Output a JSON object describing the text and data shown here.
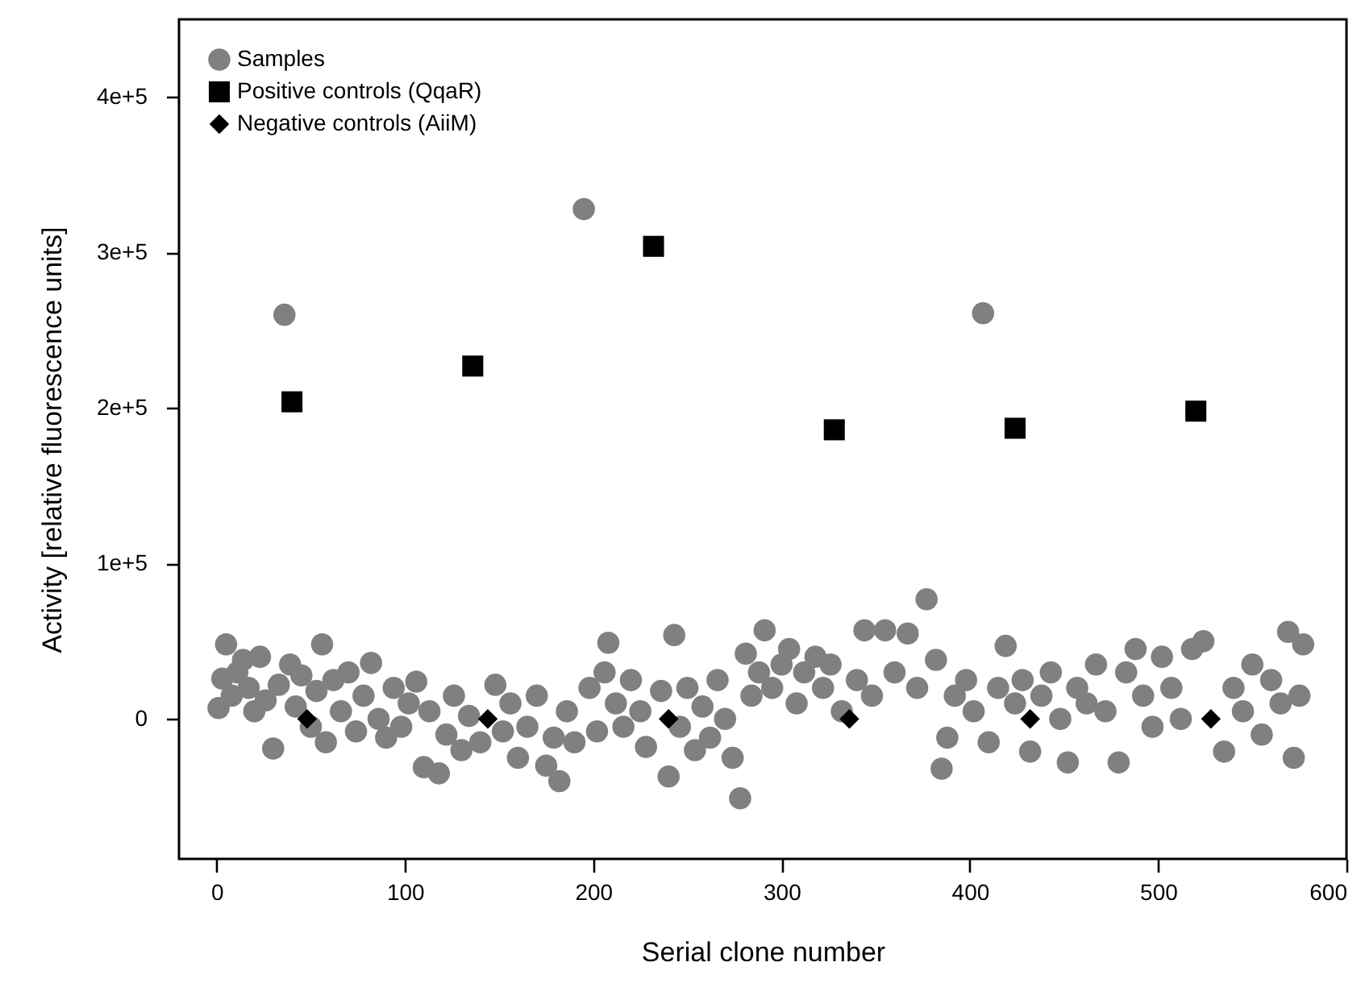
{
  "chart_data": {
    "type": "scatter",
    "xlabel": "Serial clone number",
    "ylabel": "Activity [relative fluorescence units]",
    "xlim": [
      -20,
      600
    ],
    "xticks": [
      0,
      100,
      200,
      300,
      400,
      500,
      600
    ],
    "ylim": [
      -90000,
      450000
    ],
    "yticks": [
      0,
      {
        "value": 100000,
        "label": "1e+5"
      },
      {
        "value": 200000,
        "label": "2e+5"
      },
      {
        "value": 300000,
        "label": "3e+5"
      },
      {
        "value": 400000,
        "label": "4e+5"
      }
    ],
    "grid": false,
    "legend": "top left",
    "series": [
      {
        "name": "Samples",
        "color": "#808080",
        "marker": "circle",
        "x": [
          1,
          3,
          5,
          8,
          11,
          14,
          17,
          20,
          23,
          26,
          30,
          33,
          36,
          39,
          42,
          45,
          50,
          53,
          56,
          58,
          62,
          66,
          70,
          74,
          78,
          82,
          86,
          90,
          94,
          98,
          102,
          106,
          110,
          113,
          118,
          122,
          126,
          130,
          134,
          140,
          148,
          152,
          156,
          160,
          165,
          170,
          175,
          179,
          182,
          186,
          190,
          195,
          198,
          202,
          206,
          208,
          212,
          216,
          220,
          225,
          228,
          236,
          240,
          243,
          246,
          250,
          254,
          258,
          262,
          266,
          270,
          274,
          278,
          281,
          284,
          288,
          291,
          295,
          300,
          304,
          308,
          312,
          318,
          322,
          326,
          332,
          340,
          344,
          348,
          355,
          360,
          367,
          372,
          377,
          382,
          385,
          388,
          392,
          398,
          402,
          407,
          410,
          415,
          419,
          424,
          428,
          432,
          438,
          443,
          448,
          452,
          457,
          462,
          467,
          472,
          479,
          483,
          488,
          492,
          497,
          502,
          507,
          512,
          518,
          524,
          535,
          540,
          545,
          550,
          555,
          560,
          565,
          569,
          572,
          575,
          577
        ],
        "values": [
          7000,
          26000,
          48000,
          15000,
          30000,
          38000,
          20000,
          5000,
          40000,
          12000,
          -19000,
          22000,
          260000,
          35000,
          8000,
          28000,
          -5000,
          18000,
          48000,
          -15000,
          25000,
          5000,
          30000,
          -8000,
          15000,
          36000,
          0,
          -12000,
          20000,
          -5000,
          10000,
          24000,
          -31000,
          5000,
          -35000,
          -10000,
          15000,
          -20000,
          2000,
          -15000,
          22000,
          -8000,
          10000,
          -25000,
          -5000,
          15000,
          -30000,
          -12000,
          -40000,
          5000,
          -15000,
          328000,
          20000,
          -8000,
          30000,
          49000,
          10000,
          -5000,
          25000,
          5000,
          -18000,
          18000,
          -37000,
          54000,
          -5000,
          20000,
          -20000,
          8000,
          -12000,
          25000,
          0,
          -25000,
          -51000,
          42000,
          15000,
          30000,
          57000,
          20000,
          35000,
          45000,
          10000,
          30000,
          40000,
          20000,
          35000,
          5000,
          25000,
          57000,
          15000,
          57000,
          30000,
          55000,
          20000,
          77000,
          38000,
          -32000,
          -12000,
          15000,
          25000,
          5000,
          261000,
          -15000,
          20000,
          47000,
          10000,
          25000,
          -21000,
          15000,
          30000,
          0,
          -28000,
          20000,
          10000,
          35000,
          5000,
          -28000,
          30000,
          45000,
          15000,
          -5000,
          40000,
          20000,
          0,
          45000,
          50000,
          -21000,
          20000,
          5000,
          35000,
          -10000,
          25000,
          10000,
          56000,
          -25000,
          15000,
          48000
        ]
      },
      {
        "name": "Positive controls (QqaR)",
        "color": "#000000",
        "marker": "square",
        "x": [
          40,
          136,
          232,
          328,
          424,
          520
        ],
        "values": [
          204000,
          227000,
          304000,
          186000,
          187000,
          198000
        ]
      },
      {
        "name": "Negative controls (AiiM)",
        "color": "#000000",
        "marker": "diamond",
        "x": [
          48,
          144,
          240,
          336,
          432,
          528
        ],
        "values": [
          0,
          0,
          0,
          0,
          0,
          0
        ]
      }
    ]
  }
}
